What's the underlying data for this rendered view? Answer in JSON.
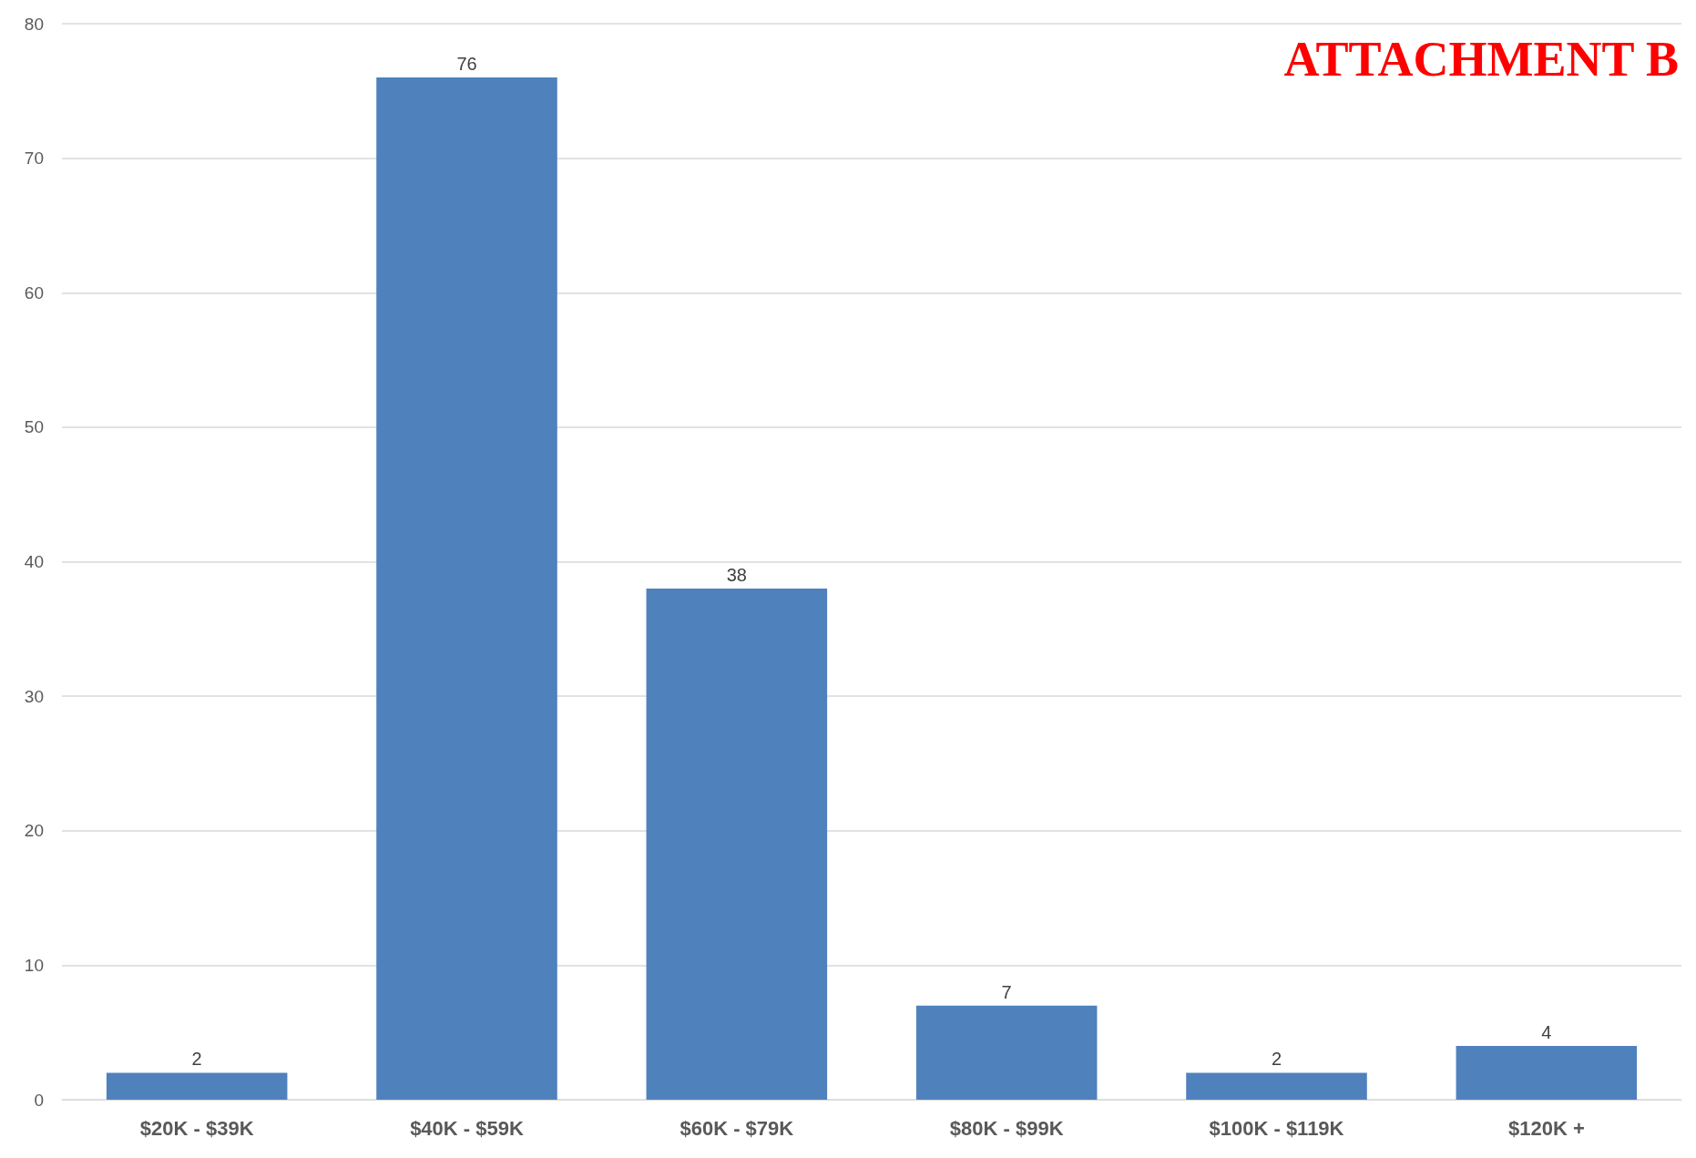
{
  "chart_data": {
    "type": "bar",
    "categories": [
      "$20K - $39K",
      "$40K - $59K",
      "$60K - $79K",
      "$80K - $99K",
      "$100K - $119K",
      "$120K +"
    ],
    "values": [
      2,
      76,
      38,
      7,
      2,
      4
    ],
    "color": "#4f81bd",
    "ylim": [
      0,
      80
    ],
    "yticks": [
      0,
      10,
      20,
      30,
      40,
      50,
      60,
      70,
      80
    ],
    "grid": "y",
    "data_labels": true,
    "annotations": [
      "ATTACHMENT B"
    ]
  }
}
